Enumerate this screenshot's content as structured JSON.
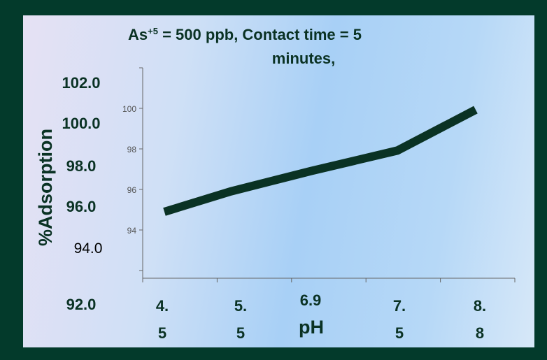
{
  "chart_data": {
    "type": "line",
    "title": "As+5 = 500 ppb, Contact time = 5 minutes,",
    "title_parts": {
      "base": "As",
      "superscript": "+5",
      "rest_line1": " = 500 ppb, Contact time = 5",
      "line2": "minutes,"
    },
    "xlabel": "pH",
    "ylabel": "%Adsorption",
    "categories": [
      "4.5",
      "5.5",
      "6.9",
      "7.5",
      "8.8"
    ],
    "category_display": [
      [
        "4.",
        "5"
      ],
      [
        "5.",
        "5"
      ],
      [
        "6.9",
        ""
      ],
      [
        "7.",
        "5"
      ],
      [
        "8.",
        "8"
      ]
    ],
    "series": [
      {
        "values": [
          95.0,
          96.0,
          97.0,
          98.0,
          100.0
        ],
        "color": "#0a3224"
      }
    ],
    "y_tick_labels": [
      "102.0",
      "100.0",
      "98.0",
      "96.0",
      "94.0",
      "92.0"
    ],
    "y_axis_numbers": [
      "100",
      "98",
      "96",
      "94"
    ],
    "ylim": [
      92,
      102
    ],
    "grid": false,
    "legend": "none"
  }
}
